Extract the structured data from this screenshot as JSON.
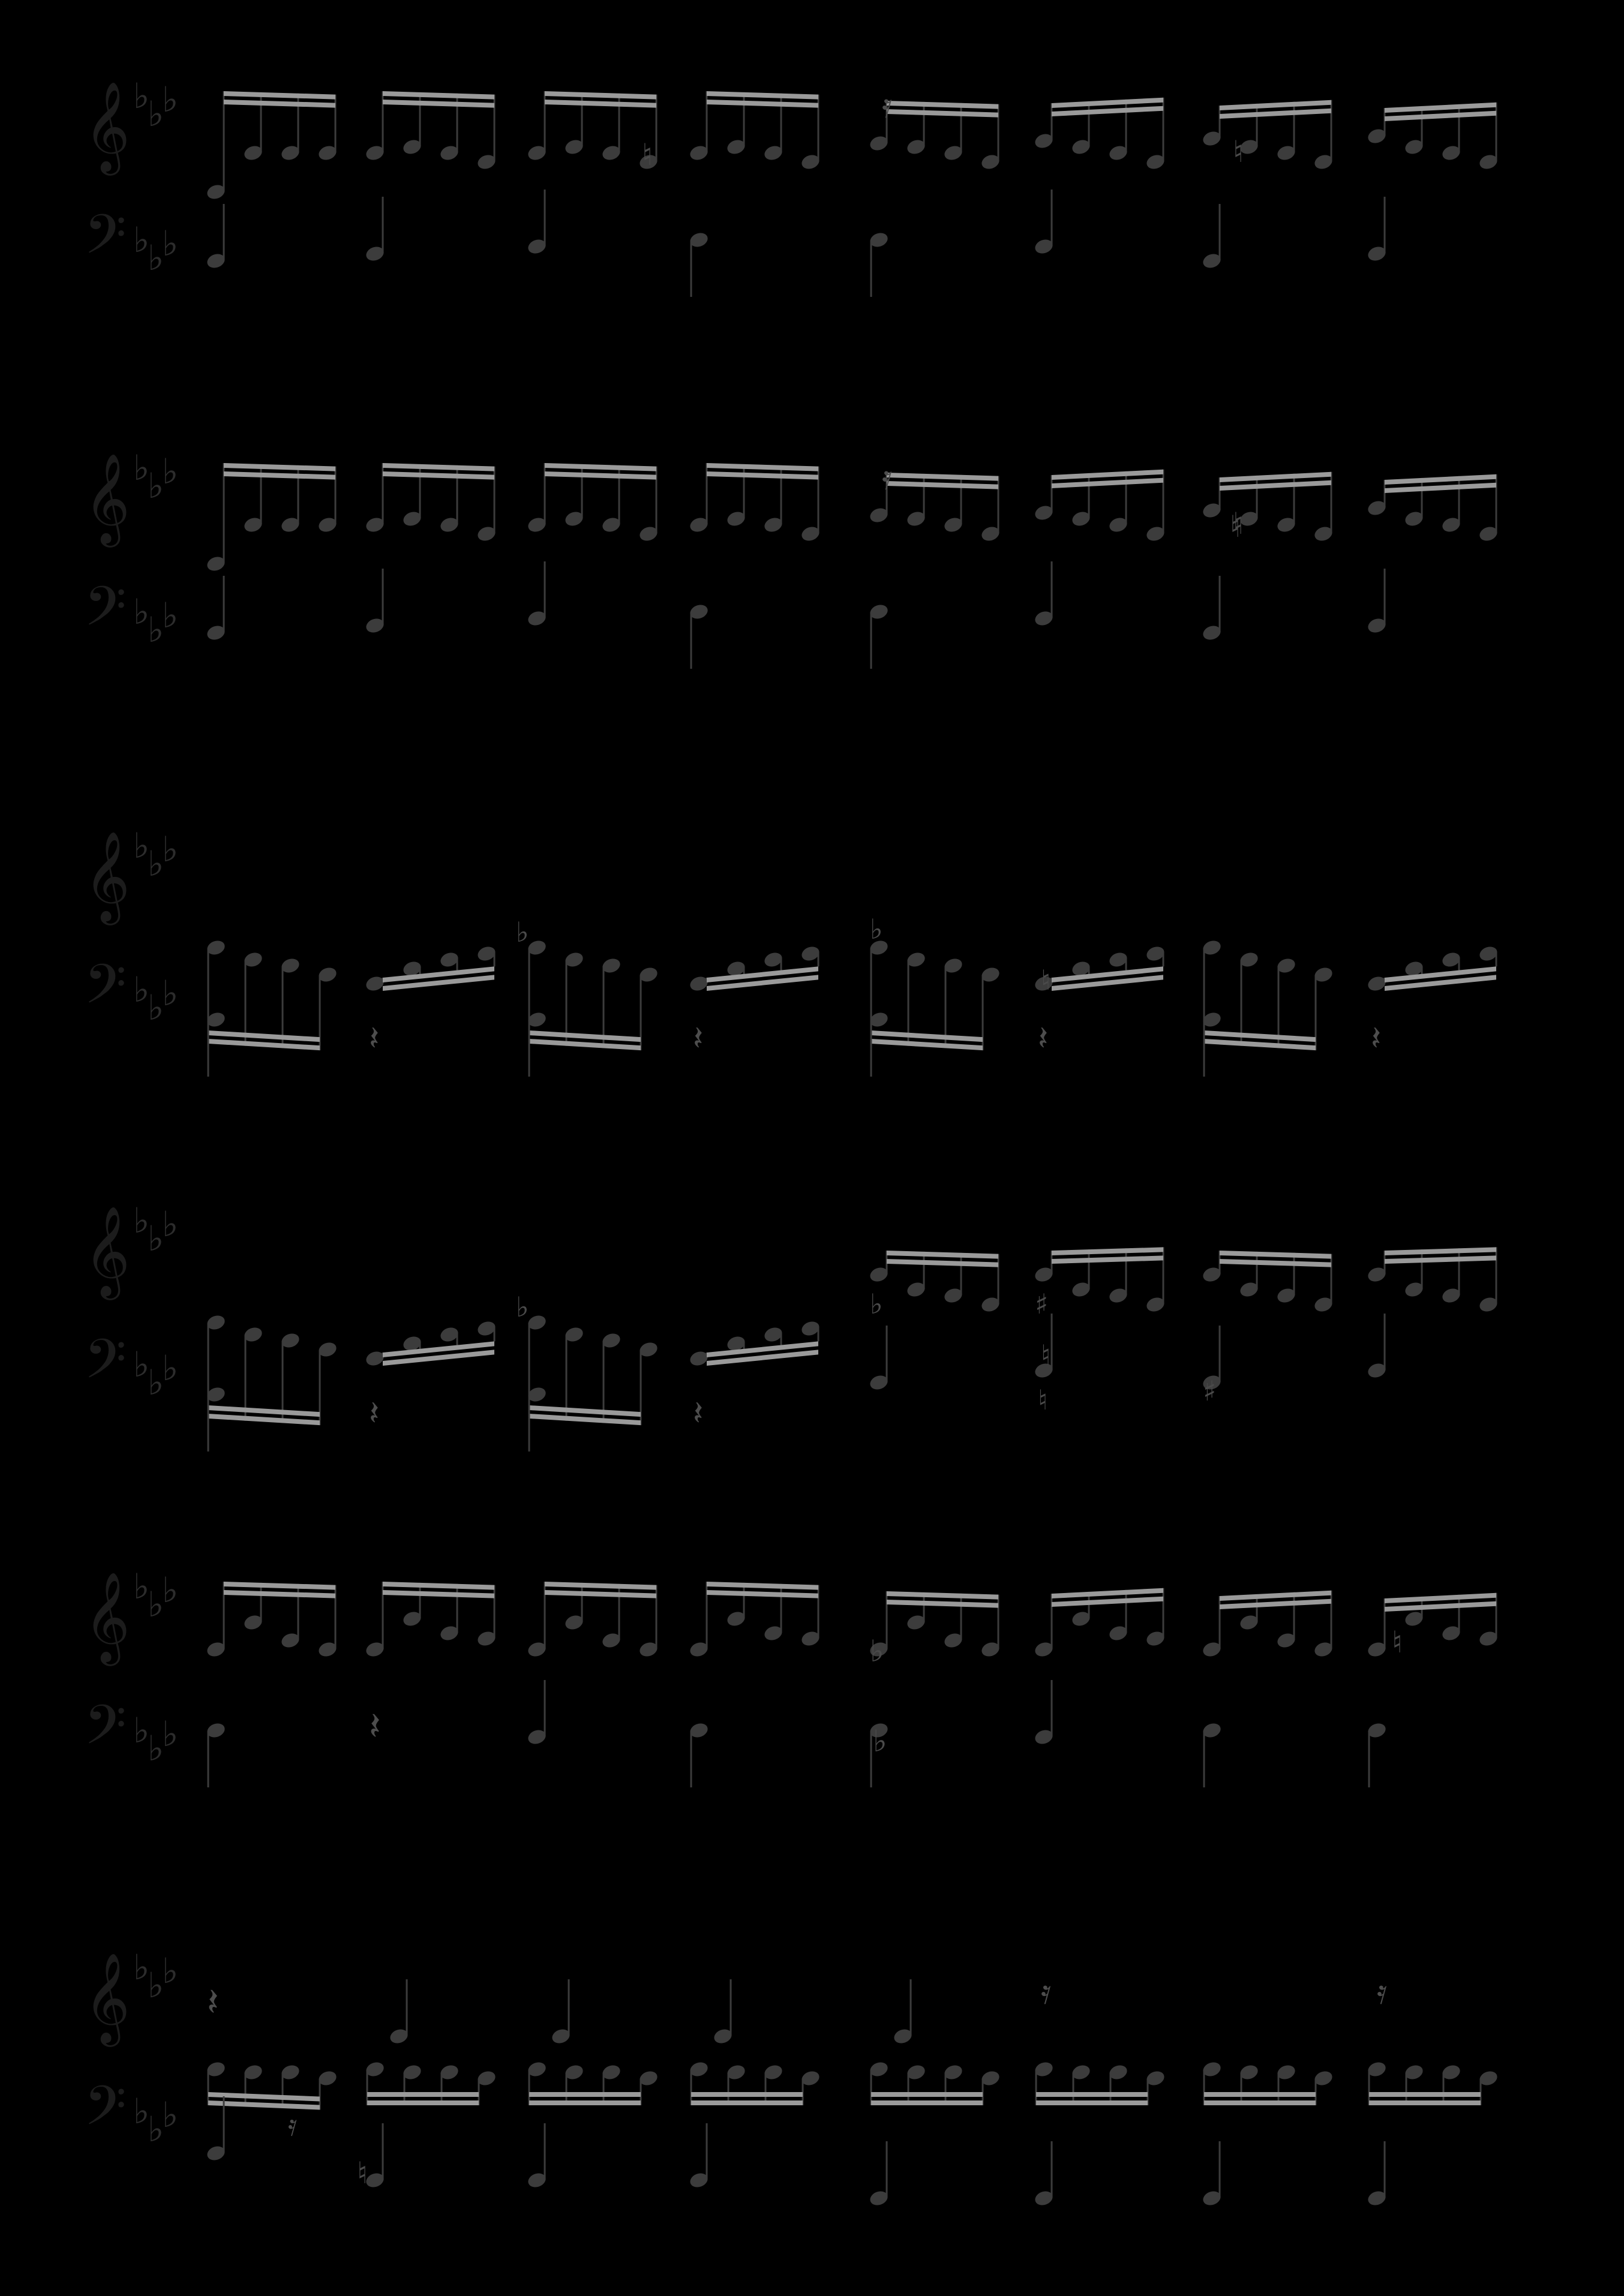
{
  "score": {
    "systems": [
      {
        "id": 1,
        "treble_clef": "𝄞",
        "bass_clef": "𝄢",
        "key_signature": "E-flat major (3 flats)"
      },
      {
        "id": 2,
        "treble_clef": "𝄞",
        "bass_clef": "𝄢",
        "key_signature": "E-flat major (3 flats)"
      },
      {
        "id": 3,
        "treble_clef": "𝄞",
        "bass_clef": "𝄢",
        "key_signature": "E-flat major (3 flats)"
      },
      {
        "id": 4,
        "treble_clef": "𝄞",
        "bass_clef": "𝄢",
        "key_signature": "E-flat major (3 flats)"
      },
      {
        "id": 5,
        "treble_clef": "𝄞",
        "bass_clef": "𝄢",
        "key_signature": "E-flat major (3 flats)"
      },
      {
        "id": 6,
        "treble_clef": "𝄞",
        "bass_clef": "𝄢",
        "key_signature": "E-flat major (3 flats)"
      }
    ],
    "glyphs": {
      "flat": "♭",
      "natural": "♮",
      "sharp": "♯",
      "sixteenth_rest": "𝄿",
      "quarter_rest": "𝄽"
    },
    "colors": {
      "background": "#000000",
      "notes": "#3c3c3c",
      "beams": "#9a9a9a",
      "clefs": "#1c1c1c"
    }
  }
}
